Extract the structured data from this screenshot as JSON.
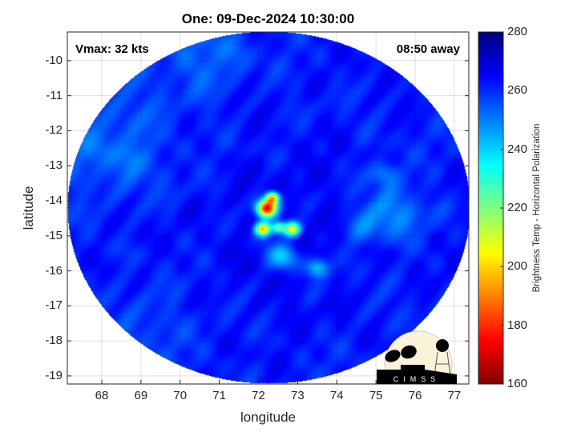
{
  "chart_data": {
    "type": "heatmap",
    "title": "One: 09-Dec-2024 10:30:00",
    "xlabel": "longitude",
    "ylabel": "latitude",
    "xlim": [
      67.12,
      77.37
    ],
    "ylim": [
      -19.23,
      -9.18
    ],
    "xticks": [
      "68",
      "69",
      "70",
      "71",
      "72",
      "73",
      "74",
      "75",
      "76",
      "77"
    ],
    "yticks": [
      "-10",
      "-11",
      "-12",
      "-13",
      "-14",
      "-15",
      "-16",
      "-17",
      "-18",
      "-19"
    ],
    "grid": true,
    "colorbar": {
      "label": "Brightness Temp - Horizontal Polarization",
      "range": [
        160,
        280
      ],
      "ticks": [
        "160",
        "180",
        "200",
        "220",
        "240",
        "260",
        "280"
      ],
      "colormap": "jet-reversed"
    },
    "annotations": {
      "vmax": "Vmax: 32 kts",
      "time_away": "08:50 away"
    },
    "features": [
      {
        "desc_value": "cold core min",
        "lon": 72.2,
        "lat": -14.2,
        "value": 170
      },
      {
        "lon": 72.1,
        "lat": -14.8,
        "value": 195
      },
      {
        "lon": 72.8,
        "lat": -14.8,
        "value": 200
      },
      {
        "lon": 72.6,
        "lat": -15.6,
        "value": 235
      },
      {
        "lon": 73.5,
        "lat": -15.8,
        "value": 235
      }
    ],
    "background_value": 262
  },
  "logo": "CIMSS"
}
